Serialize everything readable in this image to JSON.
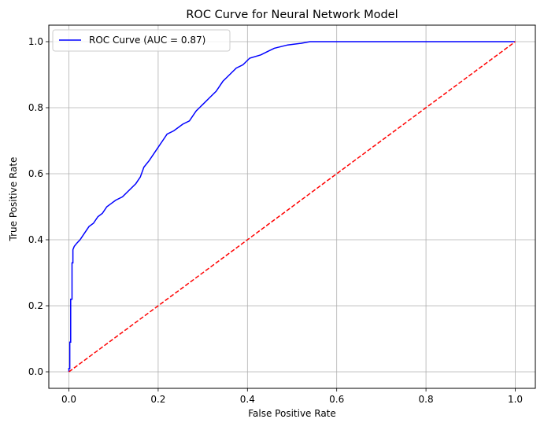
{
  "chart_data": {
    "type": "line",
    "title": "ROC Curve for Neural Network Model",
    "xlabel": "False Positive Rate",
    "ylabel": "True Positive Rate",
    "xlim": [
      -0.045,
      1.045
    ],
    "ylim": [
      -0.05,
      1.05
    ],
    "xticks": [
      0.0,
      0.2,
      0.4,
      0.6,
      0.8,
      1.0
    ],
    "yticks": [
      0.0,
      0.2,
      0.4,
      0.6,
      0.8,
      1.0
    ],
    "xtick_labels": [
      "0.0",
      "0.2",
      "0.4",
      "0.6",
      "0.8",
      "1.0"
    ],
    "ytick_labels": [
      "0.0",
      "0.2",
      "0.4",
      "0.6",
      "0.8",
      "1.0"
    ],
    "grid": true,
    "legend_position": "upper-left",
    "series": [
      {
        "name": "ROC Curve (AUC = 0.87)",
        "color": "#0000ff",
        "style": "solid",
        "step": true,
        "points": [
          [
            0.0,
            0.0
          ],
          [
            0.0,
            0.01
          ],
          [
            0.002,
            0.01
          ],
          [
            0.002,
            0.09
          ],
          [
            0.004,
            0.09
          ],
          [
            0.004,
            0.22
          ],
          [
            0.007,
            0.22
          ],
          [
            0.007,
            0.33
          ],
          [
            0.009,
            0.33
          ],
          [
            0.009,
            0.37
          ],
          [
            0.012,
            0.38
          ],
          [
            0.018,
            0.39
          ],
          [
            0.025,
            0.4
          ],
          [
            0.035,
            0.42
          ],
          [
            0.045,
            0.44
          ],
          [
            0.055,
            0.45
          ],
          [
            0.065,
            0.47
          ],
          [
            0.075,
            0.48
          ],
          [
            0.085,
            0.5
          ],
          [
            0.095,
            0.51
          ],
          [
            0.105,
            0.52
          ],
          [
            0.12,
            0.53
          ],
          [
            0.135,
            0.55
          ],
          [
            0.15,
            0.57
          ],
          [
            0.16,
            0.59
          ],
          [
            0.168,
            0.62
          ],
          [
            0.18,
            0.64
          ],
          [
            0.195,
            0.67
          ],
          [
            0.21,
            0.7
          ],
          [
            0.22,
            0.72
          ],
          [
            0.235,
            0.73
          ],
          [
            0.255,
            0.75
          ],
          [
            0.27,
            0.76
          ],
          [
            0.285,
            0.79
          ],
          [
            0.3,
            0.81
          ],
          [
            0.315,
            0.83
          ],
          [
            0.33,
            0.85
          ],
          [
            0.345,
            0.88
          ],
          [
            0.36,
            0.9
          ],
          [
            0.375,
            0.92
          ],
          [
            0.39,
            0.93
          ],
          [
            0.405,
            0.95
          ],
          [
            0.43,
            0.96
          ],
          [
            0.445,
            0.97
          ],
          [
            0.46,
            0.98
          ],
          [
            0.49,
            0.99
          ],
          [
            0.52,
            0.995
          ],
          [
            0.54,
            1.0
          ],
          [
            1.0,
            1.0
          ]
        ]
      },
      {
        "name": "",
        "color": "#ff0000",
        "style": "dashed",
        "step": false,
        "points": [
          [
            0.0,
            0.0
          ],
          [
            1.0,
            1.0
          ]
        ]
      }
    ]
  }
}
